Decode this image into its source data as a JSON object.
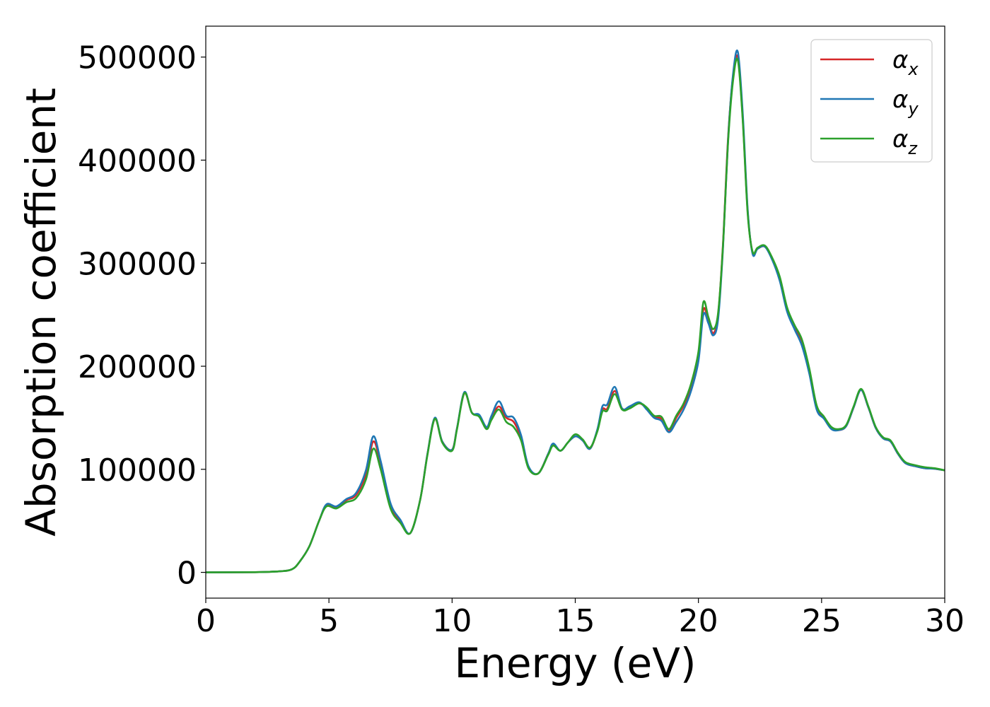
{
  "chart_data": {
    "type": "line",
    "xlabel": "Energy (eV)",
    "ylabel": "Absorption coefficient",
    "xlim": [
      0,
      30
    ],
    "ylim": [
      -25000,
      530000
    ],
    "xticks": [
      0,
      5,
      10,
      15,
      20,
      25,
      30
    ],
    "yticks": [
      0,
      100000,
      200000,
      300000,
      400000,
      500000
    ],
    "xtick_labels": [
      "0",
      "5",
      "10",
      "15",
      "20",
      "25",
      "30"
    ],
    "ytick_labels": [
      "0",
      "100000",
      "200000",
      "300000",
      "400000",
      "500000"
    ],
    "grid": false,
    "legend_position": "top-right",
    "x": [
      0,
      2,
      3,
      3.5,
      3.8,
      4.2,
      4.6,
      4.9,
      5.3,
      5.7,
      6.1,
      6.5,
      6.8,
      7.1,
      7.5,
      7.9,
      8.3,
      8.7,
      9.0,
      9.3,
      9.6,
      10.0,
      10.2,
      10.5,
      10.8,
      11.1,
      11.4,
      11.6,
      11.9,
      12.2,
      12.5,
      12.8,
      13.1,
      13.5,
      13.9,
      14.1,
      14.4,
      14.7,
      15.0,
      15.3,
      15.6,
      15.9,
      16.1,
      16.3,
      16.6,
      16.9,
      17.2,
      17.6,
      17.9,
      18.2,
      18.5,
      18.8,
      19.1,
      19.4,
      19.7,
      20.0,
      20.2,
      20.4,
      20.6,
      20.8,
      21.0,
      21.2,
      21.4,
      21.6,
      21.8,
      22.0,
      22.2,
      22.4,
      22.7,
      23.0,
      23.3,
      23.6,
      23.9,
      24.2,
      24.5,
      24.8,
      25.1,
      25.4,
      25.7,
      26.0,
      26.3,
      26.6,
      26.9,
      27.2,
      27.5,
      27.8,
      28.1,
      28.4,
      28.8,
      29.2,
      29.6,
      30.0
    ],
    "series": [
      {
        "name": "α_x",
        "color": "#d62728",
        "values": [
          0,
          200,
          1000,
          3000,
          10000,
          25000,
          50000,
          65000,
          63000,
          70000,
          75000,
          95000,
          127000,
          105000,
          65000,
          50000,
          38000,
          70000,
          115000,
          149000,
          127000,
          119000,
          140000,
          174000,
          155000,
          152000,
          140000,
          150000,
          161000,
          150000,
          146000,
          130000,
          102000,
          96000,
          115000,
          124000,
          118000,
          126000,
          132000,
          128000,
          120000,
          138000,
          158000,
          159000,
          176000,
          159000,
          160000,
          164000,
          159000,
          151000,
          149000,
          137000,
          150000,
          162000,
          180000,
          210000,
          255000,
          245000,
          232000,
          250000,
          320000,
          420000,
          480000,
          500000,
          440000,
          350000,
          310000,
          314000,
          316000,
          304000,
          285000,
          255000,
          238000,
          222000,
          195000,
          160000,
          150000,
          140000,
          138000,
          142000,
          160000,
          177000,
          160000,
          140000,
          130000,
          127000,
          115000,
          106000,
          103000,
          101000,
          100500,
          99000
        ]
      },
      {
        "name": "α_y",
        "color": "#1f77b4",
        "values": [
          0,
          200,
          1000,
          3000,
          10000,
          25000,
          50000,
          66000,
          64000,
          71000,
          77000,
          99000,
          132000,
          108000,
          67000,
          51000,
          38000,
          70000,
          115000,
          150000,
          127000,
          119000,
          140000,
          175000,
          155000,
          153000,
          141000,
          152000,
          166000,
          152000,
          150000,
          133000,
          103000,
          96000,
          115000,
          125000,
          118000,
          126000,
          132000,
          128000,
          120000,
          139000,
          161000,
          163000,
          180000,
          159000,
          161000,
          165000,
          158000,
          150000,
          147000,
          136000,
          146000,
          158000,
          176000,
          205000,
          250000,
          242000,
          230000,
          246000,
          316000,
          418000,
          482000,
          505000,
          445000,
          352000,
          309000,
          314000,
          316000,
          303000,
          283000,
          253000,
          236000,
          220000,
          193000,
          158000,
          149000,
          139000,
          138000,
          142000,
          160000,
          177000,
          160000,
          140000,
          130000,
          127000,
          115000,
          106000,
          103000,
          101000,
          100500,
          99000
        ]
      },
      {
        "name": "α_z",
        "color": "#2ca02c",
        "values": [
          0,
          200,
          1000,
          3000,
          10000,
          25000,
          50000,
          64000,
          62000,
          68000,
          72000,
          90000,
          120000,
          100000,
          62000,
          48000,
          38000,
          70000,
          114000,
          149000,
          126000,
          118000,
          139000,
          174000,
          155000,
          151000,
          139000,
          148000,
          158000,
          146000,
          141000,
          128000,
          101000,
          96000,
          114000,
          123000,
          118000,
          126000,
          134000,
          129000,
          121000,
          137000,
          156000,
          157000,
          173000,
          158000,
          159000,
          164000,
          160000,
          152000,
          151000,
          139000,
          152000,
          164000,
          183000,
          214000,
          262000,
          248000,
          236000,
          252000,
          318000,
          416000,
          476000,
          497000,
          438000,
          348000,
          311000,
          315000,
          317000,
          305000,
          287000,
          257000,
          240000,
          226000,
          198000,
          162000,
          151000,
          141000,
          139000,
          143000,
          161000,
          178000,
          161000,
          141000,
          131000,
          128000,
          116000,
          107000,
          104000,
          102000,
          101000,
          99000
        ]
      }
    ]
  },
  "legend": {
    "items": [
      {
        "symbol": "α",
        "sub": "x"
      },
      {
        "symbol": "α",
        "sub": "y"
      },
      {
        "symbol": "α",
        "sub": "z"
      }
    ]
  }
}
